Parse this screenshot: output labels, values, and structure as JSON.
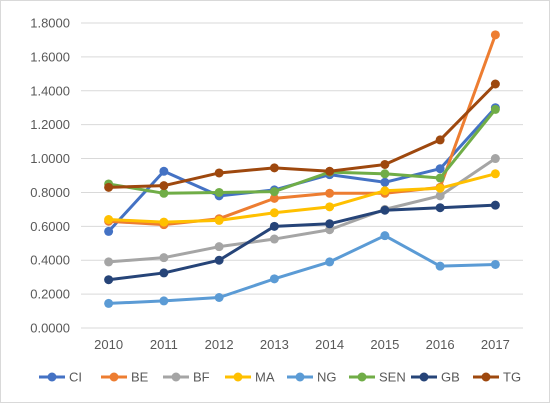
{
  "chart_data": {
    "type": "line",
    "title": "",
    "xlabel": "",
    "ylabel": "",
    "categories": [
      "2010",
      "2011",
      "2012",
      "2013",
      "2014",
      "2015",
      "2016",
      "2017"
    ],
    "ylim": [
      0,
      1.8
    ],
    "y_ticks": [
      "0.0000",
      "0.2000",
      "0.4000",
      "0.6000",
      "0.8000",
      "1.0000",
      "1.2000",
      "1.4000",
      "1.6000",
      "1.8000"
    ],
    "grid": "horizontal",
    "legend_position": "bottom",
    "series": [
      {
        "name": "CI",
        "color": "#4472C4",
        "values": [
          0.57,
          0.925,
          0.78,
          0.815,
          0.905,
          0.86,
          0.94,
          1.3
        ]
      },
      {
        "name": "BE",
        "color": "#ED7D31",
        "values": [
          0.63,
          0.61,
          0.645,
          0.765,
          0.795,
          0.795,
          0.83,
          1.73
        ]
      },
      {
        "name": "BF",
        "color": "#A5A5A5",
        "values": [
          0.39,
          0.415,
          0.48,
          0.525,
          0.58,
          0.7,
          0.78,
          1.0
        ]
      },
      {
        "name": "MA",
        "color": "#FFC000",
        "values": [
          0.64,
          0.625,
          0.635,
          0.68,
          0.715,
          0.81,
          0.825,
          0.91
        ]
      },
      {
        "name": "NG",
        "color": "#5B9BD5",
        "values": [
          0.145,
          0.16,
          0.18,
          0.29,
          0.39,
          0.545,
          0.365,
          0.375
        ]
      },
      {
        "name": "SEN",
        "color": "#70AD47",
        "values": [
          0.85,
          0.795,
          0.8,
          0.805,
          0.92,
          0.91,
          0.885,
          1.29
        ]
      },
      {
        "name": "GB",
        "color": "#264478",
        "values": [
          0.285,
          0.325,
          0.4,
          0.6,
          0.615,
          0.695,
          0.71,
          0.725
        ]
      },
      {
        "name": "TG",
        "color": "#9E480E",
        "values": [
          0.83,
          0.84,
          0.915,
          0.945,
          0.925,
          0.965,
          1.11,
          1.44
        ]
      }
    ]
  }
}
